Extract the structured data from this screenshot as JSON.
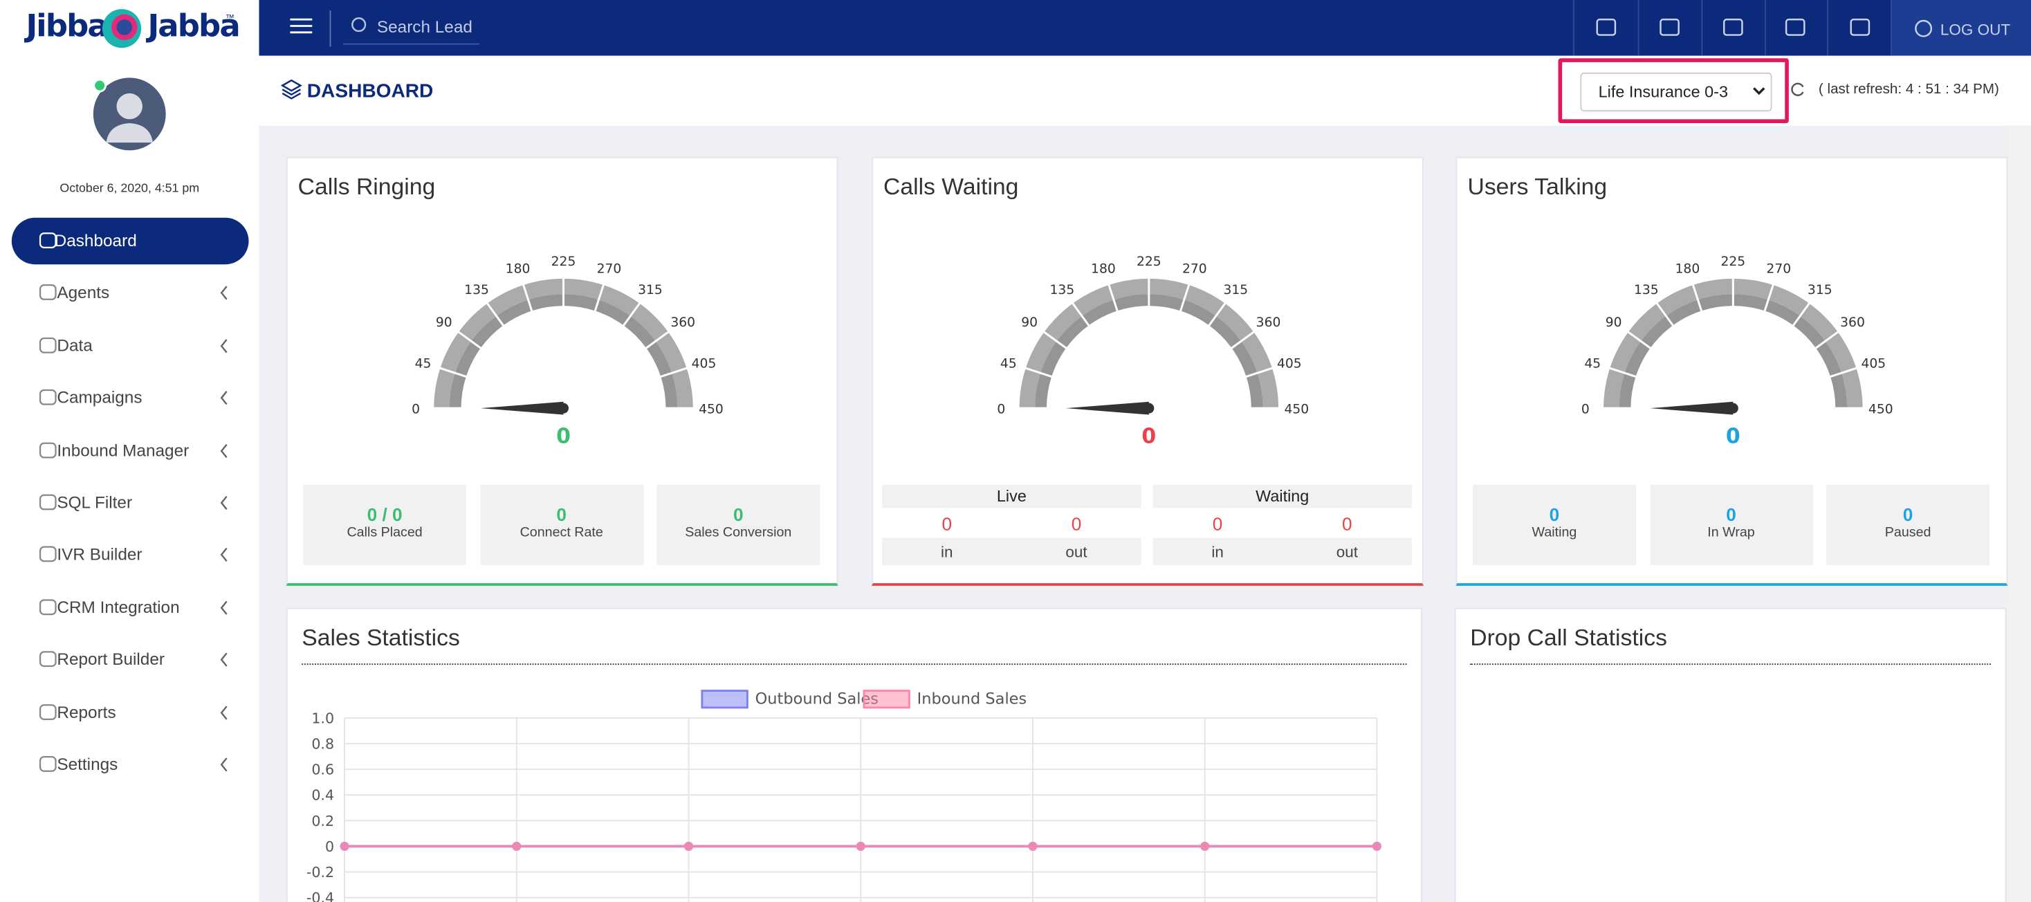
{
  "header": {
    "logo_left": "Jibba",
    "logo_right": "Jabba",
    "logo_mark": "™",
    "search_placeholder": "Search Lead",
    "logout": "LOG OUT"
  },
  "sidebar": {
    "date": "October 6, 2020, 4:51 pm",
    "active": 0,
    "menu": [
      "Dashboard",
      "Agents",
      "Data",
      "Campaigns",
      "Inbound Manager",
      "SQL Filter",
      "IVR Builder",
      "CRM Integration",
      "Report Builder",
      "Reports",
      "Settings"
    ]
  },
  "page": {
    "title": "DASHBOARD",
    "campaign": "Life Insurance 0-3",
    "last_refresh": "( last refresh: 4 : 51 : 34 PM)"
  },
  "gauges": [
    {
      "title": "Calls Ringing",
      "range": [
        0,
        450
      ],
      "ticks": [
        0,
        45,
        90,
        135,
        180,
        225,
        270,
        315,
        360,
        405,
        450
      ],
      "value": 0,
      "color": "#3dbd72",
      "stats": [
        {
          "value": "0 / 0",
          "label": "Calls Placed"
        },
        {
          "value": 0,
          "label": "Connect Rate"
        },
        {
          "value": 0,
          "label": "Sales Conversion"
        }
      ]
    },
    {
      "title": "Calls Waiting",
      "range": [
        0,
        450
      ],
      "ticks": [
        0,
        45,
        90,
        135,
        180,
        225,
        270,
        315,
        360,
        405,
        450
      ],
      "value": 0,
      "color": "#e8434b",
      "groups": [
        {
          "title": "Live",
          "values": [
            0,
            0
          ],
          "labels": [
            "in",
            "out"
          ]
        },
        {
          "title": "Waiting",
          "values": [
            0,
            0
          ],
          "labels": [
            "in",
            "out"
          ]
        }
      ]
    },
    {
      "title": "Users Talking",
      "range": [
        0,
        450
      ],
      "ticks": [
        0,
        45,
        90,
        135,
        180,
        225,
        270,
        315,
        360,
        405,
        450
      ],
      "value": 0,
      "color": "#1da4e0",
      "stats": [
        {
          "value": 0,
          "label": "Waiting"
        },
        {
          "value": 0,
          "label": "In Wrap"
        },
        {
          "value": 0,
          "label": "Paused"
        }
      ]
    }
  ],
  "chart_data": {
    "type": "line",
    "title": "Sales Statistics",
    "categories": [
      null,
      null,
      null,
      null,
      null,
      null,
      null
    ],
    "series": [
      {
        "name": "Outbound Sales",
        "color": "#7b7ff2",
        "values": [
          0,
          0,
          0,
          0,
          0,
          0,
          0
        ]
      },
      {
        "name": "Inbound Sales",
        "color": "#ff86a6",
        "values": [
          0,
          0,
          0,
          0,
          0,
          0,
          0
        ]
      }
    ],
    "ylim": [
      -0.4,
      1
    ],
    "yticks": [
      {
        "value": 1,
        "label": "1.0"
      },
      0.8,
      0.6,
      0.4,
      0.2,
      0,
      -0.2,
      -0.4
    ],
    "grid": true
  },
  "drop_calls": {
    "title": "Drop Call Statistics"
  }
}
